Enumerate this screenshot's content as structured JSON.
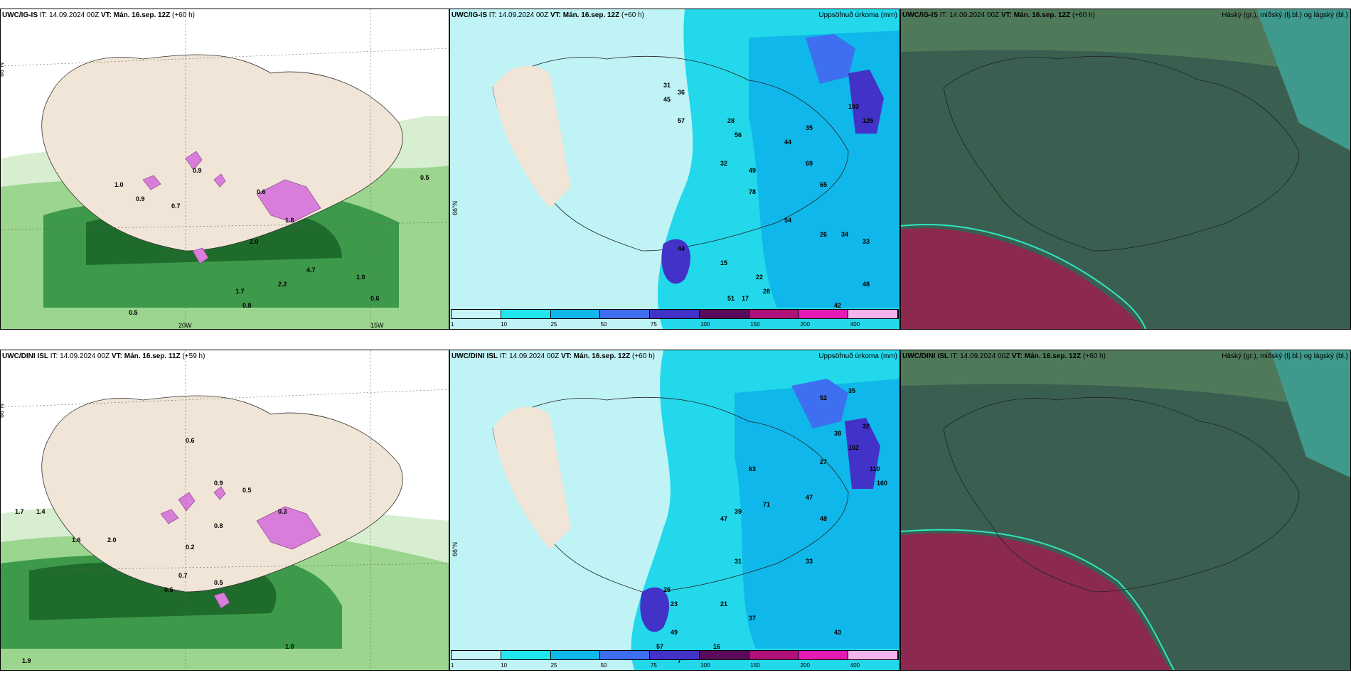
{
  "panels": [
    {
      "model": "UWC/IG-IS",
      "it_label": "IT:",
      "it": "14.09.2024 00Z",
      "vt_label": "VT:",
      "vt": "Mán. 16.sep. 12Z",
      "lead": "(+60 h)",
      "right": ""
    },
    {
      "model": "UWC/IG-IS",
      "it_label": "IT:",
      "it": "14.09.2024 00Z",
      "vt_label": "VT:",
      "vt": "Mán. 16.sep. 12Z",
      "lead": "(+60 h)",
      "right": "Uppsöfnuð úrkoma (mm)"
    },
    {
      "model": "UWC/IG-IS",
      "it_label": "IT:",
      "it": "14.09.2024 00Z",
      "vt_label": "VT:",
      "vt": "Mán. 16.sep. 12Z",
      "lead": "(+60 h)",
      "right": "Háský (gr.), miðský (fj.bl.) og lágský (bl.)"
    },
    {
      "model": "UWC/DINI ISL",
      "it_label": "IT:",
      "it": "14.09.2024 00Z",
      "vt_label": "VT:",
      "vt": "Mán. 16.sep. 11Z",
      "lead": "(+59 h)",
      "right": ""
    },
    {
      "model": "UWC/DINI ISL",
      "it_label": "IT:",
      "it": "14.09.2024 00Z",
      "vt_label": "VT:",
      "vt": "Mán. 16.sep. 12Z",
      "lead": "(+60 h)",
      "right": "Uppsöfnuð úrkoma (mm)"
    },
    {
      "model": "UWC/DINI ISL",
      "it_label": "IT:",
      "it": "14.09.2024 00Z",
      "vt_label": "VT:",
      "vt": "Mán. 16.sep. 12Z",
      "lead": "(+60 h)",
      "right": "Háský (gr.), miðský (fj.bl.) og lágský (bl.)"
    }
  ],
  "colorbar": {
    "ticks": [
      "1",
      "10",
      "25",
      "50",
      "75",
      "100",
      "150",
      "200",
      "400"
    ],
    "colors": [
      "#c8f5f7",
      "#22e6ee",
      "#10b7ea",
      "#3d6ff0",
      "#4232c8",
      "#5a0a5a",
      "#b0107a",
      "#e41ab4",
      "#f5b3ee"
    ]
  },
  "axis_labels": {
    "lat66": "66°N",
    "lon20": "20W",
    "lon15": "15W"
  },
  "colors": {
    "land": "#f1e5d7",
    "sea_precip": "#bff3f6",
    "cloud_dark": "#3a5f50",
    "cloud_red": "#8b2a4e",
    "green": "#2e7d32",
    "pink": "#d97ddb"
  },
  "top_wind_labels": [
    "0.9",
    "0.7",
    "1.0",
    "0.9",
    "0.6",
    "0.5",
    "1.8",
    "2.0",
    "4.7",
    "2.2",
    "1.7",
    "0.8",
    "1.0",
    "0.6",
    "0.5"
  ],
  "top_precip_labels": [
    "31",
    "36",
    "45",
    "57",
    "28",
    "56",
    "32",
    "49",
    "78",
    "69",
    "193",
    "125",
    "35",
    "44",
    "65",
    "54",
    "26",
    "22",
    "17",
    "15",
    "28",
    "44",
    "51",
    "33",
    "34",
    "42",
    "48"
  ],
  "bot_wind_labels": [
    "0.6",
    "1.7",
    "1.4",
    "1.6",
    "2.0",
    "0.9",
    "0.8",
    "0.5",
    "0.3",
    "0.2",
    "0.7",
    "0.6",
    "0.5",
    "1.0",
    "1.9"
  ],
  "bot_precip_labels": [
    "52",
    "35",
    "32",
    "38",
    "27",
    "63",
    "39",
    "47",
    "71",
    "47",
    "102",
    "110",
    "160",
    "48",
    "33",
    "31",
    "21",
    "37",
    "43",
    "49",
    "57",
    "25",
    "23",
    "16",
    "7"
  ]
}
